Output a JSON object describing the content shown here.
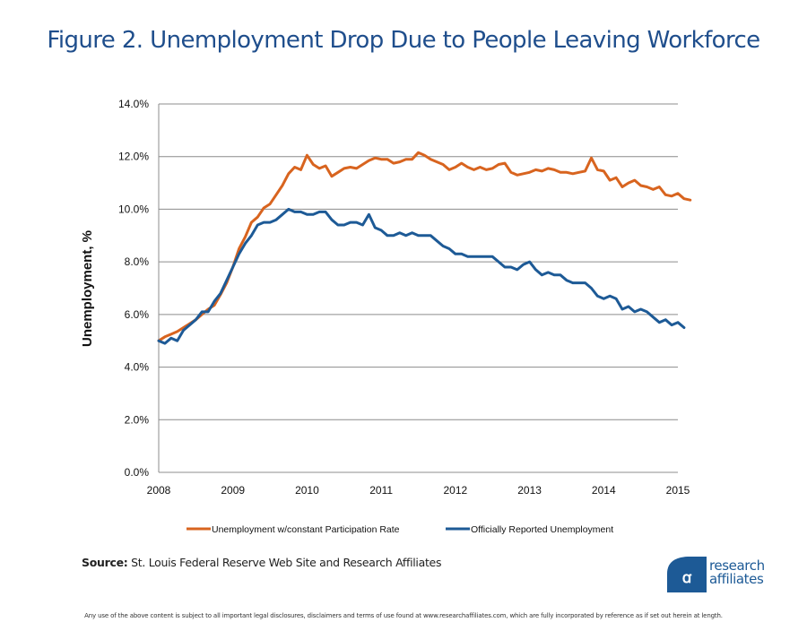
{
  "title": "Figure 2. Unemployment Drop Due to People Leaving Workforce",
  "source_label": "Source:",
  "source_text": " St. Louis Federal Reserve Web Site and Research Affiliates",
  "logo": {
    "line1": "research",
    "line2": "affiliates",
    "icon": "research-affiliates-logo-icon",
    "color": "#1d5a96"
  },
  "disclaimer": "Any use of the above content is subject to all important legal disclosures, disclaimers and terms of use found at www.researchaffiliates.com, which are fully incorporated by reference as if set out herein at length.",
  "chart_data": {
    "type": "line",
    "title": "Figure 2. Unemployment Drop Due to People Leaving Workforce",
    "xlabel": "",
    "ylabel": "Unemployment, %",
    "ylim": [
      0,
      14
    ],
    "yticks": [
      "0.0%",
      "2.0%",
      "4.0%",
      "6.0%",
      "8.0%",
      "10.0%",
      "12.0%",
      "14.0%"
    ],
    "ytick_values": [
      0,
      2,
      4,
      6,
      8,
      10,
      12,
      14
    ],
    "xticks": [
      "2008",
      "2009",
      "2010",
      "2011",
      "2012",
      "2013",
      "2014",
      "2015"
    ],
    "xlim": [
      2008,
      2015
    ],
    "x_start": 2008,
    "x_step_months": 1,
    "grid": "horizontal",
    "legend_position": "bottom",
    "series": [
      {
        "name": "Unemployment w/constant Participation Rate",
        "color": "#d8641f",
        "values": [
          5.0,
          5.15,
          5.25,
          5.35,
          5.5,
          5.65,
          5.8,
          6.0,
          6.2,
          6.35,
          6.75,
          7.2,
          7.8,
          8.5,
          8.95,
          9.5,
          9.7,
          10.05,
          10.2,
          10.55,
          10.9,
          11.35,
          11.6,
          11.5,
          12.05,
          11.7,
          11.55,
          11.65,
          11.25,
          11.4,
          11.55,
          11.6,
          11.55,
          11.7,
          11.85,
          11.95,
          11.9,
          11.9,
          11.75,
          11.8,
          11.9,
          11.9,
          12.15,
          12.05,
          11.9,
          11.8,
          11.7,
          11.5,
          11.6,
          11.75,
          11.6,
          11.5,
          11.6,
          11.5,
          11.55,
          11.7,
          11.75,
          11.4,
          11.3,
          11.35,
          11.4,
          11.5,
          11.45,
          11.55,
          11.5,
          11.4,
          11.4,
          11.35,
          11.4,
          11.45,
          11.95,
          11.5,
          11.45,
          11.1,
          11.2,
          10.85,
          11.0,
          11.1,
          10.9,
          10.85,
          10.75,
          10.85,
          10.55,
          10.5,
          10.6,
          10.4,
          10.35
        ]
      },
      {
        "name": "Officially Reported Unemployment",
        "color": "#1d5a96",
        "values": [
          5.0,
          4.9,
          5.1,
          5.0,
          5.4,
          5.6,
          5.8,
          6.1,
          6.1,
          6.5,
          6.8,
          7.3,
          7.8,
          8.3,
          8.7,
          9.0,
          9.4,
          9.5,
          9.5,
          9.6,
          9.8,
          10.0,
          9.9,
          9.9,
          9.8,
          9.8,
          9.9,
          9.9,
          9.6,
          9.4,
          9.4,
          9.5,
          9.5,
          9.4,
          9.8,
          9.3,
          9.2,
          9.0,
          9.0,
          9.1,
          9.0,
          9.1,
          9.0,
          9.0,
          9.0,
          8.8,
          8.6,
          8.5,
          8.3,
          8.3,
          8.2,
          8.2,
          8.2,
          8.2,
          8.2,
          8.0,
          7.8,
          7.8,
          7.7,
          7.9,
          8.0,
          7.7,
          7.5,
          7.6,
          7.5,
          7.5,
          7.3,
          7.2,
          7.2,
          7.2,
          7.0,
          6.7,
          6.6,
          6.7,
          6.6,
          6.2,
          6.3,
          6.1,
          6.2,
          6.1,
          5.9,
          5.7,
          5.8,
          5.6,
          5.7,
          5.5
        ]
      }
    ]
  }
}
